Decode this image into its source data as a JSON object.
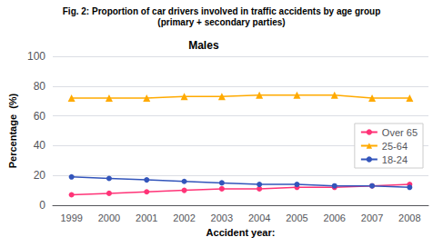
{
  "chart_data": {
    "type": "line",
    "title": "Fig. 2: Proportion of car drivers involved in traffic accidents by age group",
    "subtitle": "(primary + secondary parties)",
    "xlabel": "Accident year:",
    "ylabel": "Percentage  (%)",
    "annotations": [
      "Males"
    ],
    "categories": [
      1999,
      2000,
      2001,
      2002,
      2003,
      2004,
      2005,
      2006,
      2007,
      2008
    ],
    "series": [
      {
        "name": "Over 65",
        "color": "#ff3377",
        "marker": "circle",
        "values": [
          7,
          8,
          9,
          10,
          11,
          11,
          12,
          12,
          13,
          14
        ]
      },
      {
        "name": "25-64",
        "color": "#ffaa00",
        "marker": "triangle",
        "values": [
          72,
          72,
          72,
          73,
          73,
          74,
          74,
          74,
          72,
          72
        ]
      },
      {
        "name": "18-24",
        "color": "#3355bb",
        "marker": "circle",
        "values": [
          19,
          18,
          17,
          16,
          15,
          14,
          14,
          13,
          13,
          12
        ]
      }
    ],
    "ylim": [
      0,
      100
    ],
    "yticks": [
      0,
      20,
      40,
      60,
      80,
      100
    ],
    "grid": true,
    "legend": "lower right"
  }
}
